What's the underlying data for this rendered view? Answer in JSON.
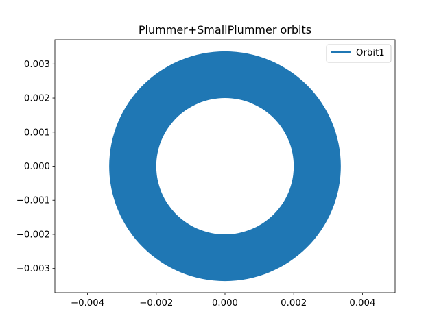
{
  "chart_data": {
    "type": "line",
    "title": "Plummer+SmallPlummer orbits",
    "xlabel": "",
    "ylabel": "",
    "xlim": [
      -0.00495,
      0.00495
    ],
    "ylim": [
      -0.00371,
      0.00371
    ],
    "xticks": [
      -0.004,
      -0.002,
      0.0,
      0.002,
      0.004
    ],
    "xtick_labels": [
      "−0.004",
      "−0.002",
      "0.000",
      "0.002",
      "0.004"
    ],
    "yticks": [
      -0.003,
      -0.002,
      -0.001,
      0.0,
      0.001,
      0.002,
      0.003
    ],
    "ytick_labels": [
      "−0.003",
      "−0.002",
      "−0.001",
      "0.000",
      "0.001",
      "0.002",
      "0.003"
    ],
    "grid": false,
    "legend_position": "top-right",
    "series": [
      {
        "name": "Orbit1",
        "color": "#1f77b4",
        "shape": "filled annulus traced by orbit",
        "center": [
          0.0,
          0.0
        ],
        "outer_radius": 0.00337,
        "inner_radius": 0.002
      }
    ]
  }
}
